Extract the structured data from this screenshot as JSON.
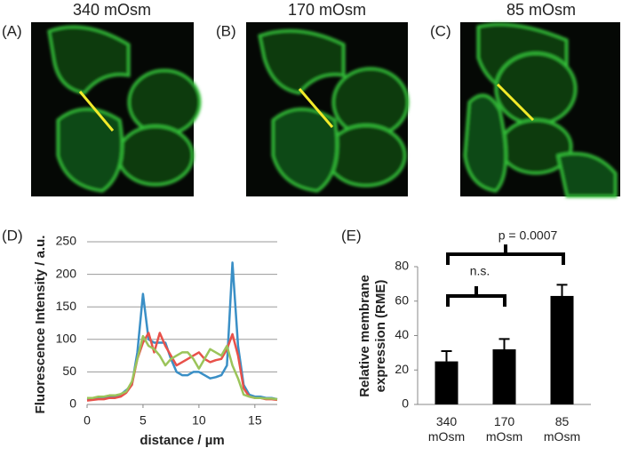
{
  "panels": [
    {
      "label": "(A)",
      "title": "340 mOsm"
    },
    {
      "label": "(B)",
      "title": "170 mOsm"
    },
    {
      "label": "(C)",
      "title": "85 mOsm"
    }
  ],
  "chart_data": [
    {
      "type": "line",
      "label": "(D)",
      "ylabel": "Fluorescence Intensity / a.u.",
      "xlabel": "distance / µm",
      "x": [
        0,
        0.5,
        1,
        1.5,
        2,
        2.5,
        3,
        3.5,
        4,
        4.5,
        5,
        5.5,
        6,
        6.5,
        7,
        7.5,
        8,
        8.5,
        9,
        9.5,
        10,
        10.5,
        11,
        11.5,
        12,
        12.5,
        13,
        13.5,
        14,
        14.5,
        15,
        15.5,
        16,
        16.5,
        17
      ],
      "series": [
        {
          "color": "#3a8fc6",
          "values": [
            8,
            9,
            10,
            10,
            12,
            12,
            15,
            22,
            30,
            80,
            170,
            100,
            95,
            95,
            95,
            70,
            50,
            45,
            45,
            50,
            50,
            45,
            40,
            42,
            45,
            60,
            218,
            90,
            30,
            15,
            12,
            12,
            10,
            10,
            8
          ]
        },
        {
          "color": "#e8514a",
          "values": [
            6,
            7,
            8,
            8,
            10,
            10,
            12,
            18,
            30,
            70,
            95,
            110,
            80,
            110,
            90,
            75,
            60,
            65,
            70,
            75,
            80,
            70,
            65,
            68,
            70,
            85,
            108,
            75,
            25,
            12,
            10,
            10,
            8,
            8,
            7
          ]
        },
        {
          "color": "#9bc45a",
          "values": [
            10,
            10,
            12,
            12,
            14,
            14,
            16,
            20,
            35,
            70,
            105,
            90,
            85,
            75,
            60,
            70,
            75,
            80,
            80,
            70,
            55,
            70,
            85,
            80,
            75,
            90,
            60,
            40,
            15,
            12,
            10,
            10,
            9,
            9,
            8
          ]
        }
      ],
      "xlim": [
        0,
        17
      ],
      "xticks": [
        0,
        5,
        10,
        15
      ],
      "ylim": [
        0,
        250
      ],
      "yticks": [
        0,
        50,
        100,
        150,
        200,
        250
      ],
      "grid": true
    },
    {
      "type": "bar",
      "label": "(E)",
      "ylabel": "Relative membrane expression (RME)",
      "categories": [
        "340 mOsm",
        "170 mOsm",
        "85 mOsm"
      ],
      "values": [
        25,
        32,
        63
      ],
      "errors": [
        6,
        6,
        6.5
      ],
      "color": "#000000",
      "ylim": [
        0,
        80
      ],
      "yticks": [
        0,
        20,
        40,
        60,
        80
      ],
      "annotations": [
        "n.s.",
        "p = 0.0007"
      ]
    }
  ]
}
